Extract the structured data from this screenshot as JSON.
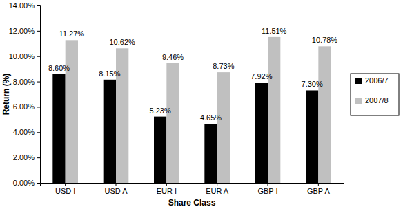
{
  "chart_data": {
    "type": "bar",
    "x_label": "Share Class",
    "y_label": "Return (%)",
    "categories": [
      "USD I",
      "USD A",
      "EUR I",
      "EUR A",
      "GBP I",
      "GBP A"
    ],
    "series": [
      {
        "name": "2006/7",
        "color": "#000000",
        "values": [
          8.6,
          8.15,
          5.23,
          4.65,
          7.92,
          7.3
        ],
        "value_labels": [
          "8.60%",
          "8.15%",
          "5.23%",
          "4.65%",
          "7.92%",
          "7.30%"
        ]
      },
      {
        "name": "2007/8",
        "color": "#c0c0c0",
        "values": [
          11.27,
          10.62,
          9.46,
          8.73,
          11.51,
          10.78
        ],
        "value_labels": [
          "11.27%",
          "10.62%",
          "9.46%",
          "8.73%",
          "11.51%",
          "10.78%"
        ]
      }
    ],
    "ylim": [
      0,
      14
    ],
    "yticks": [
      {
        "value": 0,
        "label": "0.00%"
      },
      {
        "value": 2,
        "label": "2.00%"
      },
      {
        "value": 4,
        "label": "4.00%"
      },
      {
        "value": 6,
        "label": "6.00%"
      },
      {
        "value": 8,
        "label": "8.00%"
      },
      {
        "value": 10,
        "label": "10.00%"
      },
      {
        "value": 12,
        "label": "12.00%"
      },
      {
        "value": 14,
        "label": "14.00%"
      }
    ],
    "grid": false,
    "legend": "right",
    "data_labels": true
  }
}
